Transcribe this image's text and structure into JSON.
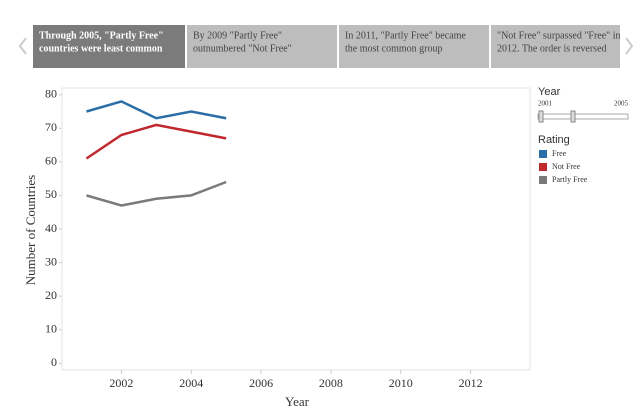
{
  "story_points": [
    {
      "lines": [
        "Through 2005, \"Partly Free\"",
        "countries were least common"
      ]
    },
    {
      "lines": [
        "By 2009 \"Partly Free\"",
        "outnumbered \"Not Free\""
      ]
    },
    {
      "lines": [
        "In 2011, \"Partly Free\" became",
        "the most common group"
      ]
    },
    {
      "lines": [
        "\"Not Free\" surpassed \"Free\" in",
        "2012. The order is reversed"
      ]
    }
  ],
  "filter": {
    "title": "Year",
    "min_label": "2001",
    "max_label": "2005"
  },
  "chart_data": {
    "type": "line",
    "x_label": "Year",
    "y_label": "Number of Countries",
    "x": [
      2001,
      2002,
      2003,
      2004,
      2005
    ],
    "series": [
      {
        "name": "Free",
        "color": "#2b6ea6",
        "values": [
          75,
          78,
          73,
          75,
          73
        ]
      },
      {
        "name": "Not Free",
        "color": "#c0282d",
        "values": [
          61,
          68,
          71,
          69,
          67
        ]
      },
      {
        "name": "Partly Free",
        "color": "#7a7a7a",
        "values": [
          50,
          47,
          49,
          50,
          54
        ]
      }
    ],
    "xlim": [
      2000.3,
      2013.7
    ],
    "ylim": [
      -2,
      82
    ],
    "xticks": [
      2002,
      2004,
      2006,
      2008,
      2010,
      2012
    ],
    "yticks": [
      0,
      10,
      20,
      30,
      40,
      50,
      60,
      70,
      80
    ],
    "legend": {
      "title": "Rating",
      "position": "right"
    }
  }
}
